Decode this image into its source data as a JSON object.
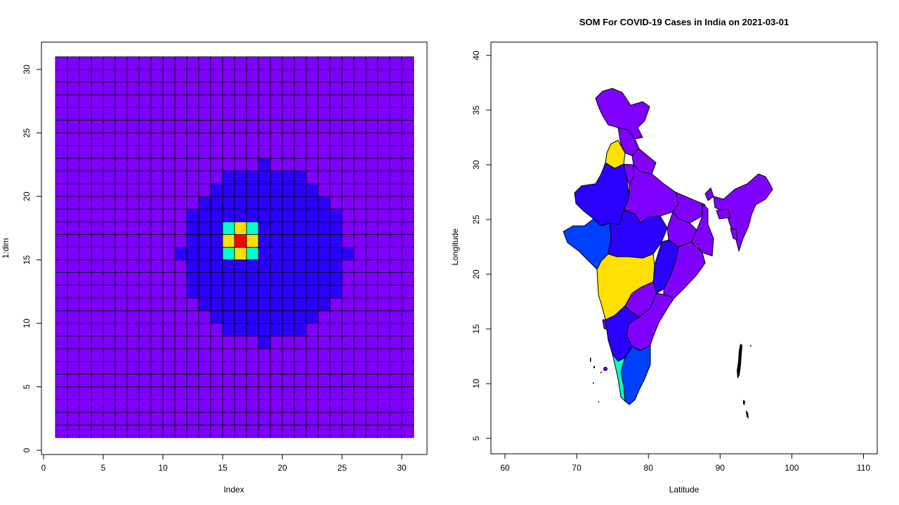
{
  "chart_data": [
    {
      "type": "heatmap",
      "title": "",
      "xlabel": "Index",
      "ylabel": "1:dim",
      "xlim": [
        0,
        31
      ],
      "ylim": [
        0,
        31
      ],
      "x_ticks": [
        0,
        5,
        10,
        15,
        20,
        25,
        30
      ],
      "y_ticks": [
        0,
        5,
        10,
        15,
        20,
        25,
        30
      ],
      "grid_size": 30,
      "colors": {
        "background": "#8000ff",
        "level1": "#2a00ff",
        "level2": "#0040ff",
        "level3": "#00ffcc",
        "level4": "#ffe000",
        "level5": "#ff0000",
        "cell_border": "#000000"
      },
      "regions": {
        "level1_rows": [
          {
            "y": 21,
            "x": [
              17,
              17
            ]
          },
          {
            "y": 20,
            "x": [
              14,
              20
            ]
          },
          {
            "y": 19,
            "x": [
              13,
              21
            ]
          },
          {
            "y": 18,
            "x": [
              12,
              22
            ]
          },
          {
            "y": 17,
            "x": [
              11,
              23
            ]
          },
          {
            "y": 16,
            "x": [
              11,
              23
            ]
          },
          {
            "y": 15,
            "x": [
              11,
              23
            ]
          },
          {
            "y": 14,
            "x": [
              10,
              24
            ]
          },
          {
            "y": 13,
            "x": [
              11,
              23
            ]
          },
          {
            "y": 12,
            "x": [
              11,
              23
            ]
          },
          {
            "y": 11,
            "x": [
              11,
              23
            ]
          },
          {
            "y": 10,
            "x": [
              12,
              22
            ]
          },
          {
            "y": 9,
            "x": [
              13,
              21
            ]
          },
          {
            "y": 8,
            "x": [
              14,
              20
            ]
          },
          {
            "y": 7,
            "x": [
              17,
              17
            ]
          }
        ],
        "center_cells": [
          {
            "x": 14,
            "y": 16,
            "level": 3
          },
          {
            "x": 15,
            "y": 16,
            "level": 4
          },
          {
            "x": 16,
            "y": 16,
            "level": 3
          },
          {
            "x": 14,
            "y": 15,
            "level": 4
          },
          {
            "x": 15,
            "y": 15,
            "level": 5
          },
          {
            "x": 16,
            "y": 15,
            "level": 4
          },
          {
            "x": 14,
            "y": 14,
            "level": 3
          },
          {
            "x": 15,
            "y": 14,
            "level": 4
          },
          {
            "x": 16,
            "y": 14,
            "level": 3
          }
        ]
      }
    },
    {
      "type": "map",
      "title": "SOM For COVID-19 Cases in India on 2021-03-01",
      "xlabel": "Latitude",
      "ylabel": "Longitude",
      "xlim": [
        58,
        112
      ],
      "ylim": [
        3.5,
        41.5
      ],
      "x_ticks": [
        60,
        70,
        80,
        90,
        100,
        110
      ],
      "y_ticks": [
        5,
        10,
        15,
        20,
        25,
        30,
        35,
        40
      ],
      "colors": {
        "purple": "#8000ff",
        "indigo": "#2a00ff",
        "blue": "#0040ff",
        "teal": "#00ffcc",
        "yellow": "#ffe000"
      }
    }
  ]
}
